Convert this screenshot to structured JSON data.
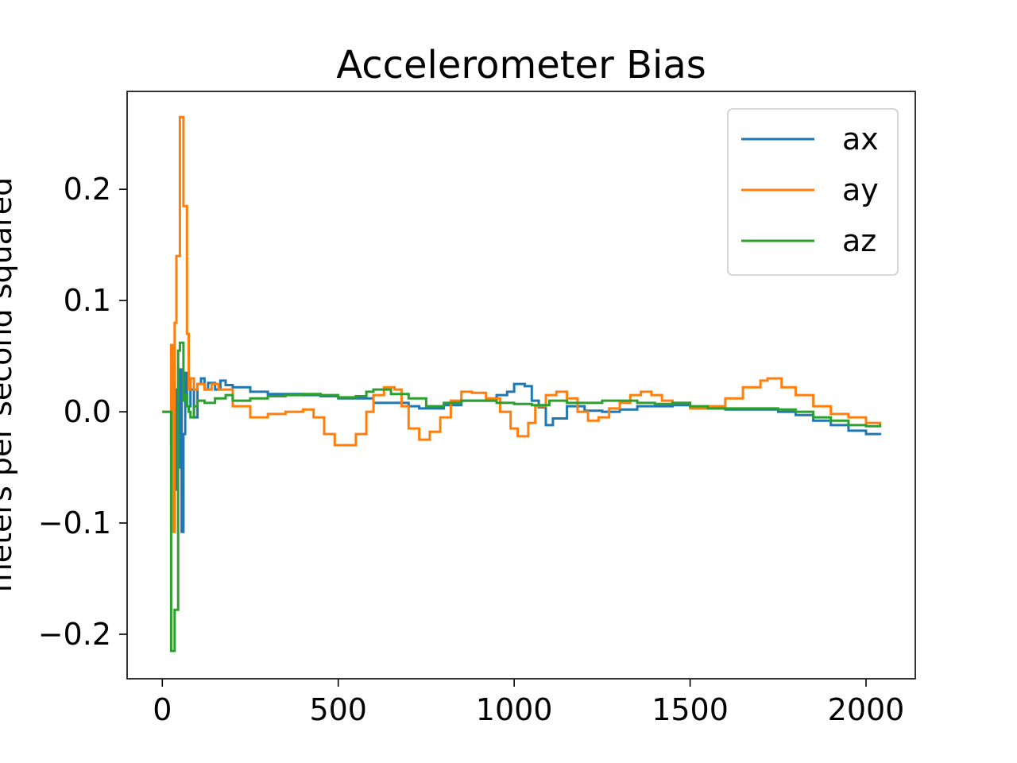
{
  "chart_data": {
    "type": "line",
    "title": "Accelerometer Bias",
    "xlabel": "",
    "ylabel": "meters per second squared",
    "xlim": [
      -100,
      2140
    ],
    "ylim": [
      -0.24,
      0.288
    ],
    "x_ticks": [
      0,
      500,
      1000,
      1500,
      2000
    ],
    "y_ticks": [
      -0.2,
      -0.1,
      0.0,
      0.1,
      0.2
    ],
    "y_tick_labels": [
      "−0.2",
      "−0.1",
      "0.0",
      "0.1",
      "0.2"
    ],
    "x_tick_labels": [
      "0",
      "500",
      "1000",
      "1500",
      "2000"
    ],
    "grid": false,
    "legend_position": "top-right",
    "series": [
      {
        "name": "ax",
        "color": "#1f77b4",
        "points": [
          [
            0,
            0.0
          ],
          [
            20,
            0.0
          ],
          [
            25,
            -0.03
          ],
          [
            30,
            0.04
          ],
          [
            35,
            -0.07
          ],
          [
            40,
            0.02
          ],
          [
            45,
            -0.05
          ],
          [
            50,
            0.038
          ],
          [
            55,
            -0.108
          ],
          [
            60,
            -0.02
          ],
          [
            65,
            0.035
          ],
          [
            70,
            0.005
          ],
          [
            80,
            0.02
          ],
          [
            90,
            -0.005
          ],
          [
            100,
            0.025
          ],
          [
            110,
            0.03
          ],
          [
            120,
            0.02
          ],
          [
            130,
            0.026
          ],
          [
            150,
            0.02
          ],
          [
            165,
            0.028
          ],
          [
            180,
            0.024
          ],
          [
            200,
            0.022
          ],
          [
            250,
            0.018
          ],
          [
            300,
            0.016
          ],
          [
            350,
            0.016
          ],
          [
            400,
            0.015
          ],
          [
            450,
            0.014
          ],
          [
            500,
            0.012
          ],
          [
            550,
            0.012
          ],
          [
            600,
            0.008
          ],
          [
            650,
            0.008
          ],
          [
            700,
            0.005
          ],
          [
            730,
            0.003
          ],
          [
            760,
            0.003
          ],
          [
            800,
            0.006
          ],
          [
            850,
            0.01
          ],
          [
            900,
            0.01
          ],
          [
            950,
            0.015
          ],
          [
            980,
            0.018
          ],
          [
            1000,
            0.025
          ],
          [
            1030,
            0.023
          ],
          [
            1050,
            0.01
          ],
          [
            1070,
            0.004
          ],
          [
            1090,
            -0.012
          ],
          [
            1110,
            -0.006
          ],
          [
            1150,
            0.005
          ],
          [
            1200,
            0.001
          ],
          [
            1250,
            0.0
          ],
          [
            1300,
            0.002
          ],
          [
            1350,
            0.005
          ],
          [
            1400,
            0.005
          ],
          [
            1450,
            0.006
          ],
          [
            1500,
            0.004
          ],
          [
            1550,
            0.003
          ],
          [
            1600,
            0.002
          ],
          [
            1650,
            0.002
          ],
          [
            1700,
            0.002
          ],
          [
            1750,
            0.0
          ],
          [
            1800,
            -0.003
          ],
          [
            1850,
            -0.008
          ],
          [
            1900,
            -0.012
          ],
          [
            1950,
            -0.017
          ],
          [
            2000,
            -0.02
          ],
          [
            2040,
            -0.021
          ]
        ]
      },
      {
        "name": "ay",
        "color": "#ff7f0e",
        "points": [
          [
            0,
            0.0
          ],
          [
            20,
            0.0
          ],
          [
            25,
            0.06
          ],
          [
            30,
            -0.108
          ],
          [
            35,
            0.08
          ],
          [
            40,
            0.14
          ],
          [
            45,
            0.14
          ],
          [
            50,
            0.265
          ],
          [
            55,
            0.265
          ],
          [
            60,
            0.185
          ],
          [
            65,
            0.185
          ],
          [
            70,
            0.07
          ],
          [
            75,
            0.02
          ],
          [
            80,
            0.03
          ],
          [
            90,
            0.02
          ],
          [
            100,
            0.025
          ],
          [
            120,
            0.02
          ],
          [
            140,
            0.025
          ],
          [
            160,
            0.02
          ],
          [
            200,
            0.005
          ],
          [
            250,
            -0.005
          ],
          [
            300,
            -0.002
          ],
          [
            350,
            0.0
          ],
          [
            400,
            0.002
          ],
          [
            430,
            -0.005
          ],
          [
            460,
            -0.02
          ],
          [
            490,
            -0.03
          ],
          [
            520,
            -0.03
          ],
          [
            550,
            -0.02
          ],
          [
            580,
            0.0
          ],
          [
            600,
            0.015
          ],
          [
            630,
            0.022
          ],
          [
            660,
            0.02
          ],
          [
            680,
            0.005
          ],
          [
            700,
            -0.015
          ],
          [
            730,
            -0.025
          ],
          [
            760,
            -0.018
          ],
          [
            790,
            -0.005
          ],
          [
            820,
            0.01
          ],
          [
            850,
            0.018
          ],
          [
            880,
            0.017
          ],
          [
            920,
            0.012
          ],
          [
            960,
            0.0
          ],
          [
            990,
            -0.015
          ],
          [
            1010,
            -0.022
          ],
          [
            1040,
            -0.01
          ],
          [
            1060,
            0.005
          ],
          [
            1090,
            0.015
          ],
          [
            1120,
            0.018
          ],
          [
            1150,
            0.012
          ],
          [
            1180,
            0.0
          ],
          [
            1210,
            -0.008
          ],
          [
            1240,
            -0.005
          ],
          [
            1270,
            0.003
          ],
          [
            1300,
            0.008
          ],
          [
            1330,
            0.015
          ],
          [
            1360,
            0.018
          ],
          [
            1390,
            0.015
          ],
          [
            1420,
            0.01
          ],
          [
            1450,
            0.008
          ],
          [
            1500,
            0.003
          ],
          [
            1550,
            0.005
          ],
          [
            1600,
            0.012
          ],
          [
            1650,
            0.022
          ],
          [
            1700,
            0.028
          ],
          [
            1720,
            0.03
          ],
          [
            1760,
            0.022
          ],
          [
            1800,
            0.015
          ],
          [
            1850,
            0.005
          ],
          [
            1900,
            -0.002
          ],
          [
            1950,
            -0.005
          ],
          [
            2000,
            -0.01
          ],
          [
            2040,
            -0.012
          ]
        ]
      },
      {
        "name": "az",
        "color": "#2ca02c",
        "points": [
          [
            0,
            0.0
          ],
          [
            20,
            0.0
          ],
          [
            25,
            -0.215
          ],
          [
            30,
            -0.215
          ],
          [
            35,
            -0.178
          ],
          [
            40,
            -0.178
          ],
          [
            45,
            0.055
          ],
          [
            50,
            0.062
          ],
          [
            55,
            0.062
          ],
          [
            60,
            0.01
          ],
          [
            65,
            0.015
          ],
          [
            70,
            0.005
          ],
          [
            75,
            0.0
          ],
          [
            80,
            -0.005
          ],
          [
            90,
            0.005
          ],
          [
            100,
            0.01
          ],
          [
            120,
            0.008
          ],
          [
            150,
            0.012
          ],
          [
            180,
            0.015
          ],
          [
            200,
            0.01
          ],
          [
            250,
            0.012
          ],
          [
            300,
            0.014
          ],
          [
            350,
            0.015
          ],
          [
            400,
            0.016
          ],
          [
            450,
            0.015
          ],
          [
            500,
            0.013
          ],
          [
            550,
            0.014
          ],
          [
            580,
            0.018
          ],
          [
            600,
            0.02
          ],
          [
            650,
            0.016
          ],
          [
            700,
            0.012
          ],
          [
            750,
            0.005
          ],
          [
            800,
            0.008
          ],
          [
            850,
            0.01
          ],
          [
            900,
            0.01
          ],
          [
            950,
            0.008
          ],
          [
            1000,
            0.007
          ],
          [
            1050,
            0.006
          ],
          [
            1100,
            0.01
          ],
          [
            1150,
            0.008
          ],
          [
            1200,
            0.008
          ],
          [
            1250,
            0.01
          ],
          [
            1300,
            0.01
          ],
          [
            1350,
            0.008
          ],
          [
            1400,
            0.007
          ],
          [
            1450,
            0.008
          ],
          [
            1500,
            0.005
          ],
          [
            1550,
            0.003
          ],
          [
            1600,
            0.003
          ],
          [
            1650,
            0.003
          ],
          [
            1700,
            0.003
          ],
          [
            1750,
            0.002
          ],
          [
            1800,
            0.0
          ],
          [
            1850,
            -0.005
          ],
          [
            1900,
            -0.008
          ],
          [
            1950,
            -0.012
          ],
          [
            2000,
            -0.013
          ],
          [
            2040,
            -0.011
          ]
        ]
      }
    ]
  }
}
